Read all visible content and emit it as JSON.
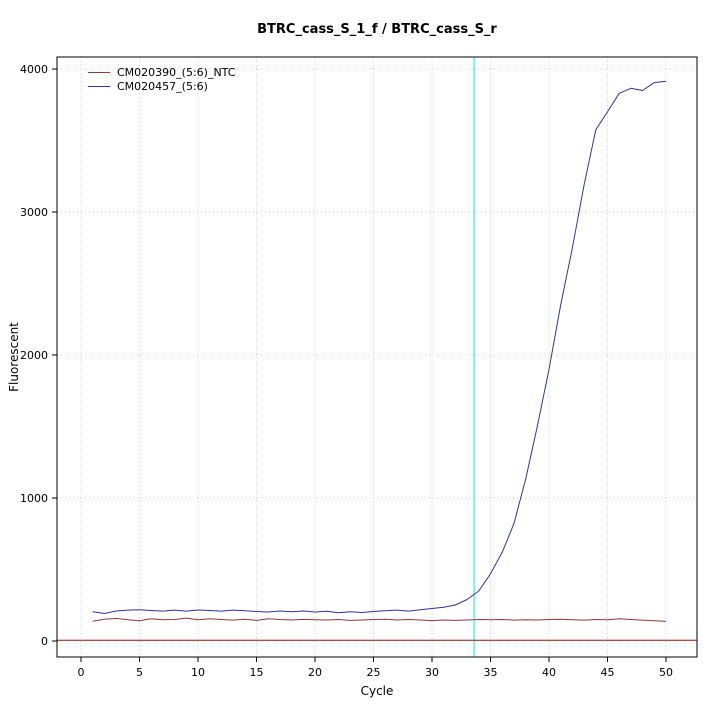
{
  "chart_data": {
    "type": "line",
    "title": "BTRC_cass_S_1_f / BTRC_cass_S_r",
    "xlabel": "Cycle",
    "ylabel": "Fluorescent",
    "xlim": [
      0,
      50
    ],
    "ylim": [
      0,
      4000
    ],
    "x_ticks": [
      0,
      5,
      10,
      15,
      20,
      25,
      30,
      35,
      40,
      45,
      50
    ],
    "y_ticks": [
      0,
      1000,
      2000,
      3000,
      4000
    ],
    "grid": "dotted",
    "grid_color": "#c8c8c8",
    "box_color": "#000000",
    "legend_position": "top-left",
    "threshold_cycle_line": {
      "x": 33.6,
      "color": "#00eeee"
    },
    "baseline": {
      "y": 5,
      "color": "#8b1a1a"
    },
    "x": [
      1,
      2,
      3,
      4,
      5,
      6,
      7,
      8,
      9,
      10,
      11,
      12,
      13,
      14,
      15,
      16,
      17,
      18,
      19,
      20,
      21,
      22,
      23,
      24,
      25,
      26,
      27,
      28,
      29,
      30,
      31,
      32,
      33,
      34,
      35,
      36,
      37,
      38,
      39,
      40,
      41,
      42,
      43,
      44,
      45,
      46,
      47,
      48,
      49,
      50
    ],
    "series": [
      {
        "name": "CM020390_(5:6)_NTC",
        "color": "#8b3a3a",
        "values": [
          138,
          152,
          158,
          148,
          142,
          155,
          148,
          150,
          160,
          149,
          155,
          150,
          146,
          152,
          144,
          156,
          150,
          147,
          151,
          149,
          147,
          150,
          144,
          147,
          150,
          152,
          147,
          150,
          147,
          143,
          147,
          144,
          147,
          150,
          148,
          150,
          146,
          149,
          147,
          150,
          152,
          149,
          146,
          150,
          148,
          156,
          150,
          146,
          142,
          137
        ]
      },
      {
        "name": "CM020457_(5:6)",
        "color": "#333399",
        "values": [
          205,
          192,
          210,
          216,
          218,
          213,
          209,
          216,
          209,
          217,
          213,
          209,
          216,
          211,
          206,
          203,
          210,
          204,
          210,
          203,
          208,
          198,
          205,
          199,
          206,
          212,
          216,
          209,
          219,
          227,
          236,
          252,
          290,
          350,
          470,
          620,
          820,
          1130,
          1500,
          1900,
          2350,
          2750,
          3190,
          3575,
          3700,
          3830,
          3865,
          3850,
          3905,
          3915
        ]
      }
    ]
  }
}
